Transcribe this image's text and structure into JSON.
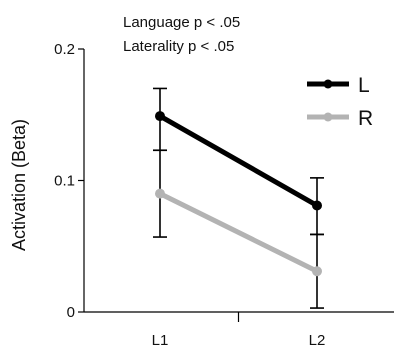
{
  "chart_data": {
    "type": "line",
    "annotations": [
      "Language p < .05",
      "Laterality p < .05"
    ],
    "ylabel": "Activation (Beta)",
    "xlabel": "",
    "categories": [
      "L1",
      "L2"
    ],
    "ylim": [
      0,
      0.2
    ],
    "yticks": [
      "0",
      "0.1",
      "0.2"
    ],
    "grid": false,
    "legend_position": "top-right",
    "series": [
      {
        "name": "L",
        "color": "#000000",
        "values": [
          0.149,
          0.081
        ],
        "err_low": [
          0.123,
          0.059
        ],
        "err_high": [
          0.17,
          0.102
        ]
      },
      {
        "name": "R",
        "color": "#b3b3b3",
        "values": [
          0.09,
          0.031
        ],
        "err_low": [
          0.057,
          0.003
        ],
        "err_high": [
          0.123,
          0.059
        ]
      }
    ]
  }
}
